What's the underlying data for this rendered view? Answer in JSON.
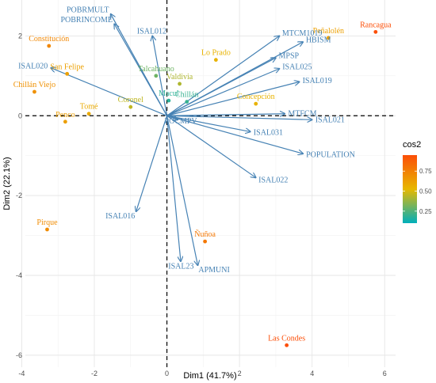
{
  "chart_data": {
    "type": "scatter",
    "subtype": "pca-biplot",
    "title": "",
    "xlabel": "Dim1 (41.7%)",
    "ylabel": "Dim2 (22.1%)",
    "xlim": [
      -3.9,
      6.3
    ],
    "ylim": [
      -6.3,
      2.9
    ],
    "xticks": [
      -4,
      -2,
      0,
      2,
      4,
      6
    ],
    "yticks": [
      -6,
      -4,
      -2,
      0,
      2
    ],
    "grid": true,
    "reference_lines": {
      "x": 0,
      "y": 0,
      "style": "dashed"
    },
    "variables_color": "#4682b4",
    "variables": [
      {
        "name": "POBRMULT",
        "x": -1.55,
        "y": 2.55
      },
      {
        "name": "POBRINCOME",
        "x": -1.45,
        "y": 2.3
      },
      {
        "name": "ISAL012",
        "x": -0.4,
        "y": 2.0
      },
      {
        "name": "ISAL020",
        "x": -3.2,
        "y": 1.2
      },
      {
        "name": "MTCM1019",
        "x": 3.1,
        "y": 2.0
      },
      {
        "name": "HBISM",
        "x": 3.75,
        "y": 1.85
      },
      {
        "name": "MPSP",
        "x": 3.0,
        "y": 1.45
      },
      {
        "name": "ISAL025",
        "x": 3.1,
        "y": 1.18
      },
      {
        "name": "ISAL019",
        "x": 3.65,
        "y": 0.85
      },
      {
        "name": "MTFCM",
        "x": 3.25,
        "y": 0.05
      },
      {
        "name": "ISAL021",
        "x": 4.0,
        "y": -0.1
      },
      {
        "name": "ISAL031",
        "x": 2.3,
        "y": -0.4
      },
      {
        "name": "POPULATION",
        "x": 3.75,
        "y": -0.95
      },
      {
        "name": "ISAL022",
        "x": 2.45,
        "y": -1.55
      },
      {
        "name": "ISAL016",
        "x": -0.85,
        "y": -2.4
      },
      {
        "name": "ISAL23",
        "x": 0.38,
        "y": -3.65
      },
      {
        "name": "APMUNI",
        "x": 0.85,
        "y": -3.75
      },
      {
        "name": "POCMPV",
        "x": 0.3,
        "y": -0.1
      }
    ],
    "points": [
      {
        "name": "Rancagua",
        "x": 5.75,
        "y": 2.1,
        "cos2": 0.95
      },
      {
        "name": "Peñalolén",
        "x": 4.45,
        "y": 1.95,
        "cos2": 0.62
      },
      {
        "name": "Lo Prado",
        "x": 1.35,
        "y": 1.4,
        "cos2": 0.55
      },
      {
        "name": "Constitución",
        "x": -3.25,
        "y": 1.75,
        "cos2": 0.72
      },
      {
        "name": "San Felipe",
        "x": -2.75,
        "y": 1.05,
        "cos2": 0.62
      },
      {
        "name": "Chillán Viejo",
        "x": -3.65,
        "y": 0.6,
        "cos2": 0.68
      },
      {
        "name": "Talcahuano",
        "x": -0.3,
        "y": 1.0,
        "cos2": 0.3
      },
      {
        "name": "Valdivia",
        "x": 0.35,
        "y": 0.8,
        "cos2": 0.42
      },
      {
        "name": "Macul",
        "x": 0.05,
        "y": 0.38,
        "cos2": 0.18
      },
      {
        "name": "Chillán",
        "x": 0.55,
        "y": 0.35,
        "cos2": 0.2
      },
      {
        "name": "Tomé",
        "x": -2.15,
        "y": 0.05,
        "cos2": 0.58
      },
      {
        "name": "Coronel",
        "x": -1.0,
        "y": 0.22,
        "cos2": 0.45
      },
      {
        "name": "Penco",
        "x": -2.8,
        "y": -0.15,
        "cos2": 0.63
      },
      {
        "name": "Concepción",
        "x": 2.45,
        "y": 0.3,
        "cos2": 0.55
      },
      {
        "name": "Pirque",
        "x": -3.3,
        "y": -2.85,
        "cos2": 0.7
      },
      {
        "name": "Ñuñoa",
        "x": 1.05,
        "y": -3.15,
        "cos2": 0.78
      },
      {
        "name": "Las Condes",
        "x": 3.3,
        "y": -5.75,
        "cos2": 0.95
      }
    ],
    "legend": {
      "title": "cos2",
      "placement": "right",
      "ticks": [
        0.25,
        0.5,
        0.75
      ],
      "range": [
        0.1,
        0.95
      ],
      "colors": [
        "#00afbb",
        "#e7b800",
        "#fc4e07"
      ]
    }
  }
}
